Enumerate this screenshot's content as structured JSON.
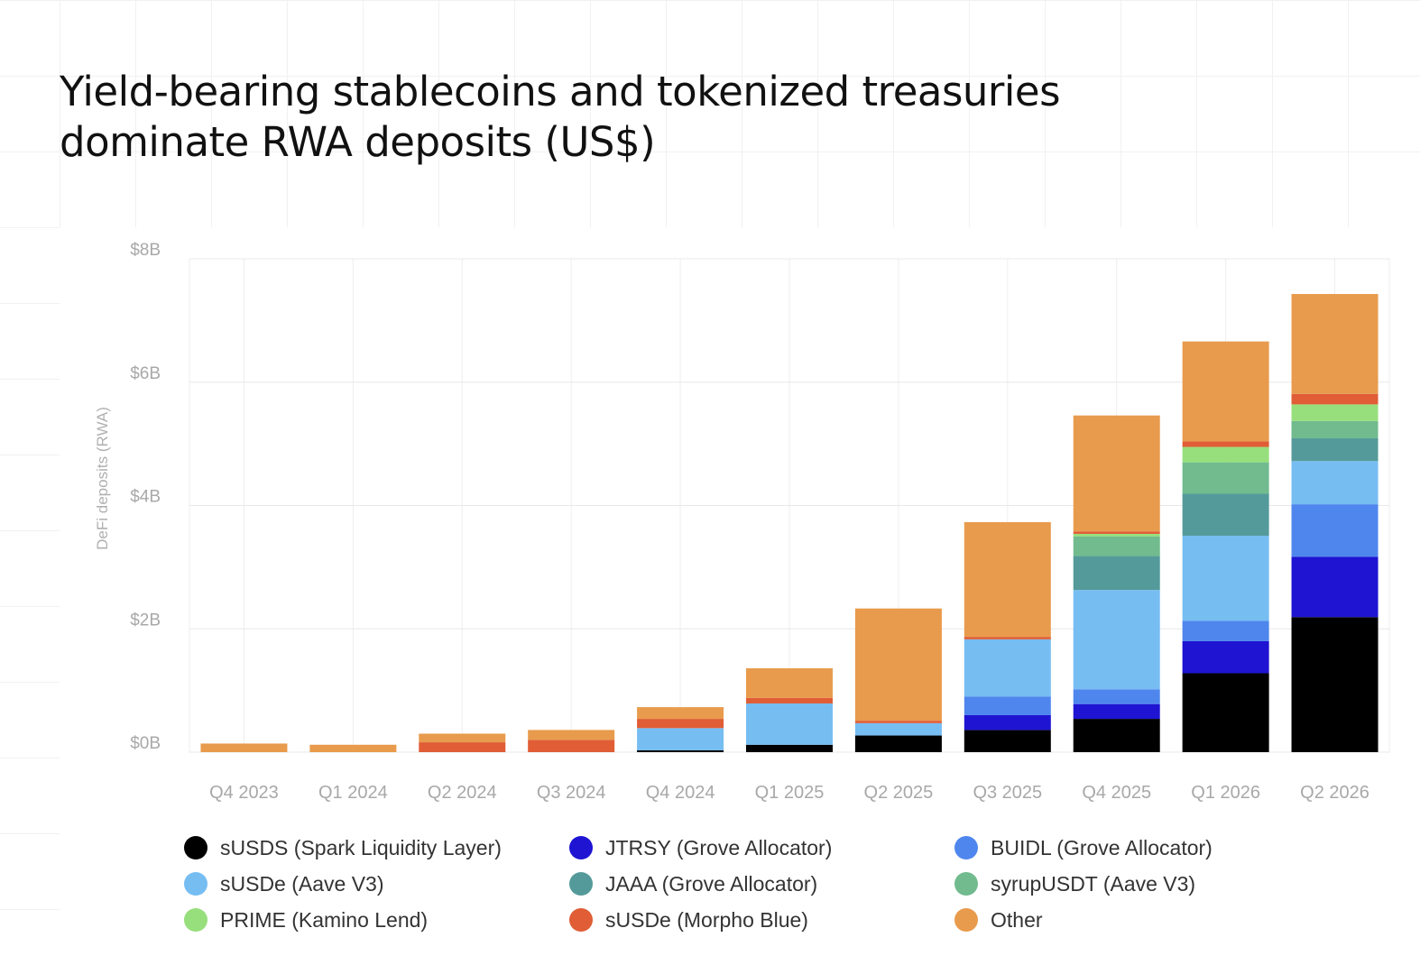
{
  "title_lines": [
    "Yield-bearing stablecoins and tokenized treasuries",
    "dominate RWA deposits (US$)"
  ],
  "chart_data": {
    "type": "bar",
    "stacked": true,
    "title": "Yield-bearing stablecoins and tokenized treasuries dominate RWA deposits (US$)",
    "xlabel": "",
    "ylabel": "DeFi deposits (RWA)",
    "ylim": [
      0,
      8
    ],
    "y_ticks": [
      0,
      2,
      4,
      6,
      8
    ],
    "y_tick_labels": [
      "$0B",
      "$2B",
      "$4B",
      "$6B",
      "$8B"
    ],
    "grid": true,
    "legend_position": "bottom",
    "categories": [
      "Q4 2023",
      "Q1 2024",
      "Q2 2024",
      "Q3 2024",
      "Q4 2024",
      "Q1 2025",
      "Q2 2025",
      "Q3 2025",
      "Q4 2025",
      "Q1 2026",
      "Q2 2026"
    ],
    "series": [
      {
        "name": "sUSDS (Spark Liquidity Layer)",
        "color": "#000000",
        "values": [
          0,
          0,
          0,
          0,
          0.03,
          0.12,
          0.27,
          0.36,
          0.54,
          1.28,
          2.19
        ]
      },
      {
        "name": "JTRSY (Grove Allocator)",
        "color": "#1e14d2",
        "values": [
          0,
          0,
          0,
          0,
          0,
          0,
          0,
          0.24,
          0.24,
          0.52,
          0.98
        ]
      },
      {
        "name": "BUIDL (Grove Allocator)",
        "color": "#4f86ee",
        "values": [
          0,
          0,
          0,
          0,
          0,
          0,
          0,
          0.3,
          0.24,
          0.33,
          0.85
        ]
      },
      {
        "name": "sUSDe (Aave V3)",
        "color": "#76bdf2",
        "values": [
          0,
          0,
          0,
          0,
          0.36,
          0.67,
          0.2,
          0.93,
          1.61,
          1.38,
          0.7
        ]
      },
      {
        "name": "JAAA (Grove Allocator)",
        "color": "#559a9a",
        "values": [
          0,
          0,
          0,
          0,
          0,
          0,
          0,
          0,
          0.55,
          0.68,
          0.37
        ]
      },
      {
        "name": "syrupUSDT (Aave V3)",
        "color": "#71bb8e",
        "values": [
          0,
          0,
          0,
          0,
          0,
          0,
          0,
          0,
          0.32,
          0.51,
          0.28
        ]
      },
      {
        "name": "PRIME (Kamino Lend)",
        "color": "#97df7c",
        "values": [
          0,
          0,
          0,
          0,
          0,
          0,
          0,
          0,
          0.04,
          0.25,
          0.27
        ]
      },
      {
        "name": "sUSDe (Morpho Blue)",
        "color": "#e05d36",
        "values": [
          0,
          0,
          0.16,
          0.2,
          0.15,
          0.09,
          0.04,
          0.04,
          0.04,
          0.09,
          0.17
        ]
      },
      {
        "name": "Other",
        "color": "#e89b4c",
        "values": [
          0.14,
          0.12,
          0.14,
          0.16,
          0.19,
          0.48,
          1.82,
          1.86,
          1.88,
          1.62,
          1.62
        ]
      }
    ]
  }
}
